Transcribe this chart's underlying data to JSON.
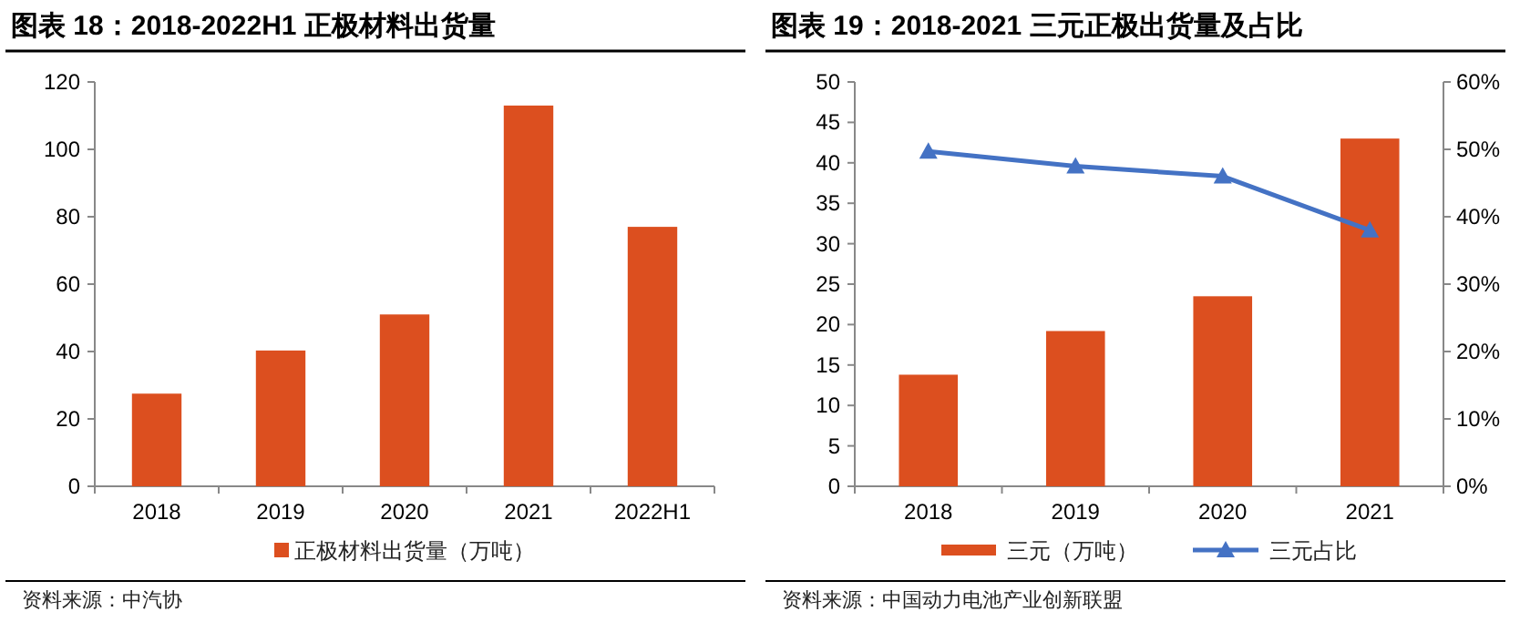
{
  "chart_data": [
    {
      "type": "bar",
      "title": "图表 18：2018-2022H1 正极材料出货量",
      "categories": [
        "2018",
        "2019",
        "2020",
        "2021",
        "2022H1"
      ],
      "series": [
        {
          "name": "正极材料出货量（万吨）",
          "color": "#dc4f1f",
          "values": [
            27.5,
            40.3,
            51,
            113,
            77
          ]
        }
      ],
      "ylim": [
        0,
        120
      ],
      "yticks": [
        0,
        20,
        40,
        60,
        80,
        100,
        120
      ],
      "legend": "bottom",
      "annotations": [
        "资料来源：中汽协"
      ]
    },
    {
      "type": "bar",
      "title": "图表 19：2018-2021 三元正极出货量及占比",
      "categories": [
        "2018",
        "2019",
        "2020",
        "2021"
      ],
      "series": [
        {
          "name": "三元（万吨）",
          "type": "bar",
          "color": "#dc4f1f",
          "values": [
            13.8,
            19.2,
            23.5,
            43
          ]
        },
        {
          "name": "三元占比",
          "type": "line",
          "axis": "y2",
          "color": "#4472c4",
          "values": [
            49.7,
            47.5,
            46,
            38
          ]
        }
      ],
      "ylim": [
        0,
        50
      ],
      "yticks": [
        0,
        5,
        10,
        15,
        20,
        25,
        30,
        35,
        40,
        45,
        50
      ],
      "y2lim": [
        0,
        60
      ],
      "y2ticks": [
        {
          "value": 0,
          "label": "0%"
        },
        {
          "value": 10,
          "label": "10%"
        },
        {
          "value": 20,
          "label": "20%"
        },
        {
          "value": 30,
          "label": "30%"
        },
        {
          "value": 40,
          "label": "40%"
        },
        {
          "value": 50,
          "label": "50%"
        },
        {
          "value": 60,
          "label": "60%"
        }
      ],
      "marker": "triangle",
      "legend": "bottom",
      "annotations": [
        "资料来源：中国动力电池产业创新联盟"
      ]
    }
  ]
}
